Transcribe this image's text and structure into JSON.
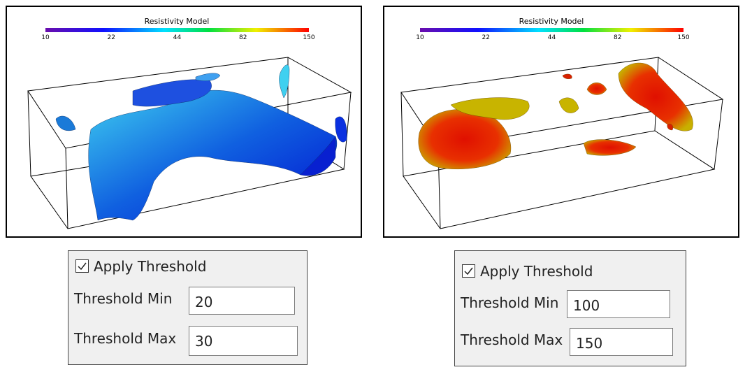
{
  "panels": [
    {
      "colorbar": {
        "title": "Resistivity Model",
        "ticks": [
          10,
          22,
          44,
          82,
          150
        ]
      },
      "controls": {
        "apply_threshold": {
          "label": "Apply Threshold",
          "checked": true
        },
        "threshold_min": {
          "label": "Threshold Min",
          "value": 20
        },
        "threshold_max": {
          "label": "Threshold Max",
          "value": 30
        }
      }
    },
    {
      "colorbar": {
        "title": "Resistivity Model",
        "ticks": [
          10,
          22,
          44,
          82,
          150
        ]
      },
      "controls": {
        "apply_threshold": {
          "label": "Apply Threshold",
          "checked": true
        },
        "threshold_min": {
          "label": "Threshold Min",
          "value": 100
        },
        "threshold_max": {
          "label": "Threshold Max",
          "value": 150
        }
      }
    }
  ]
}
